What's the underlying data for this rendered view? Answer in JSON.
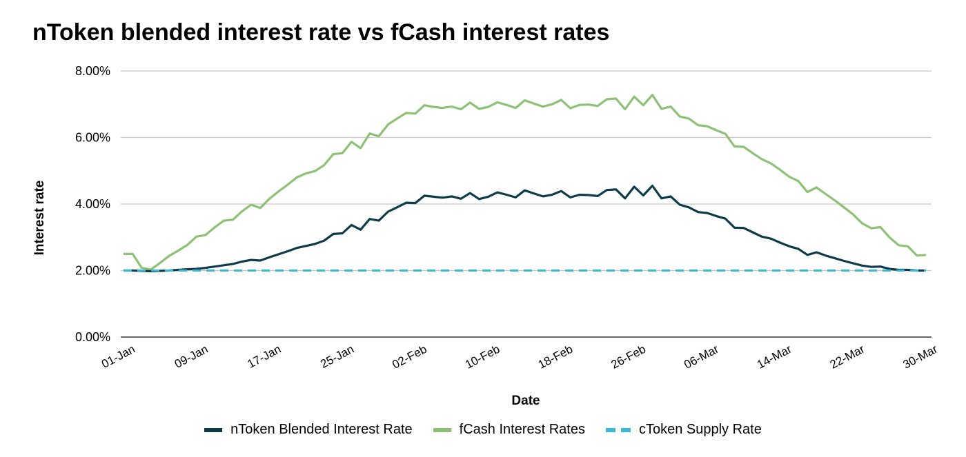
{
  "chart_data": {
    "type": "line",
    "title": "nToken blended interest rate vs fCash interest rates",
    "xlabel": "Date",
    "ylabel": "Interest rate",
    "ylim": [
      0,
      8
    ],
    "yticks": [
      "0.00%",
      "2.00%",
      "4.00%",
      "6.00%",
      "8.00%"
    ],
    "x_tick_labels": [
      "01-Jan",
      "09-Jan",
      "17-Jan",
      "25-Jan",
      "02-Feb",
      "10-Feb",
      "18-Feb",
      "26-Feb",
      "06-Mar",
      "14-Mar",
      "22-Mar",
      "30-Mar"
    ],
    "x": [
      "01-Jan",
      "02-Jan",
      "03-Jan",
      "04-Jan",
      "05-Jan",
      "06-Jan",
      "07-Jan",
      "08-Jan",
      "09-Jan",
      "10-Jan",
      "11-Jan",
      "12-Jan",
      "13-Jan",
      "14-Jan",
      "15-Jan",
      "16-Jan",
      "17-Jan",
      "18-Jan",
      "19-Jan",
      "20-Jan",
      "21-Jan",
      "22-Jan",
      "23-Jan",
      "24-Jan",
      "25-Jan",
      "26-Jan",
      "27-Jan",
      "28-Jan",
      "29-Jan",
      "30-Jan",
      "31-Jan",
      "01-Feb",
      "02-Feb",
      "03-Feb",
      "04-Feb",
      "05-Feb",
      "06-Feb",
      "07-Feb",
      "08-Feb",
      "09-Feb",
      "10-Feb",
      "11-Feb",
      "12-Feb",
      "13-Feb",
      "14-Feb",
      "15-Feb",
      "16-Feb",
      "17-Feb",
      "18-Feb",
      "19-Feb",
      "20-Feb",
      "21-Feb",
      "22-Feb",
      "23-Feb",
      "24-Feb",
      "25-Feb",
      "26-Feb",
      "27-Feb",
      "28-Feb",
      "01-Mar",
      "02-Mar",
      "03-Mar",
      "04-Mar",
      "05-Mar",
      "06-Mar",
      "07-Mar",
      "08-Mar",
      "09-Mar",
      "10-Mar",
      "11-Mar",
      "12-Mar",
      "13-Mar",
      "14-Mar",
      "15-Mar",
      "16-Mar",
      "17-Mar",
      "18-Mar",
      "19-Mar",
      "20-Mar",
      "21-Mar",
      "22-Mar",
      "23-Mar",
      "24-Mar",
      "25-Mar",
      "26-Mar",
      "27-Mar",
      "28-Mar",
      "29-Mar",
      "30-Mar"
    ],
    "grid": true,
    "legend_position": "bottom",
    "series": [
      {
        "name": "nToken Blended Interest Rate",
        "color": "#0d3b4a",
        "style": "solid",
        "values": [
          2.0,
          2.0,
          1.99,
          1.98,
          1.99,
          2.0,
          2.02,
          2.04,
          2.05,
          2.08,
          2.12,
          2.16,
          2.2,
          2.27,
          2.32,
          2.3,
          2.4,
          2.49,
          2.58,
          2.68,
          2.74,
          2.8,
          2.9,
          3.1,
          3.12,
          3.37,
          3.23,
          3.55,
          3.5,
          3.77,
          3.9,
          4.04,
          4.03,
          4.25,
          4.22,
          4.19,
          4.23,
          4.16,
          4.33,
          4.15,
          4.22,
          4.35,
          4.28,
          4.2,
          4.41,
          4.32,
          4.23,
          4.28,
          4.39,
          4.2,
          4.28,
          4.27,
          4.24,
          4.42,
          4.44,
          4.17,
          4.52,
          4.26,
          4.55,
          4.17,
          4.23,
          3.98,
          3.9,
          3.76,
          3.73,
          3.64,
          3.56,
          3.29,
          3.28,
          3.15,
          3.02,
          2.96,
          2.84,
          2.73,
          2.65,
          2.47,
          2.55,
          2.45,
          2.37,
          2.29,
          2.22,
          2.15,
          2.11,
          2.12,
          2.05,
          2.02,
          2.02,
          2.0,
          2.0
        ]
      },
      {
        "name": "fCash Interest Rates",
        "color": "#8cc176",
        "style": "solid",
        "values": [
          2.5,
          2.5,
          2.08,
          2.03,
          2.23,
          2.44,
          2.6,
          2.77,
          3.02,
          3.07,
          3.3,
          3.5,
          3.53,
          3.78,
          3.98,
          3.88,
          4.16,
          4.38,
          4.58,
          4.8,
          4.92,
          4.99,
          5.17,
          5.5,
          5.53,
          5.87,
          5.68,
          6.12,
          6.04,
          6.39,
          6.57,
          6.74,
          6.72,
          6.97,
          6.92,
          6.89,
          6.93,
          6.85,
          7.05,
          6.86,
          6.92,
          7.06,
          6.98,
          6.89,
          7.12,
          7.02,
          6.93,
          7.0,
          7.13,
          6.88,
          6.98,
          6.99,
          6.95,
          7.15,
          7.17,
          6.85,
          7.23,
          6.97,
          7.28,
          6.86,
          6.93,
          6.63,
          6.57,
          6.37,
          6.34,
          6.22,
          6.11,
          5.73,
          5.72,
          5.53,
          5.35,
          5.22,
          5.03,
          4.82,
          4.69,
          4.36,
          4.5,
          4.3,
          4.11,
          3.9,
          3.69,
          3.42,
          3.27,
          3.31,
          3.0,
          2.76,
          2.73,
          2.45,
          2.47
        ]
      },
      {
        "name": "cToken Supply Rate",
        "color": "#3ab9d6",
        "style": "dashed",
        "values": [
          2.0,
          2.0,
          2.0,
          2.0,
          2.0,
          2.0,
          2.0,
          2.0,
          2.0,
          2.0,
          2.0,
          2.0,
          2.0,
          2.0,
          2.0,
          2.0,
          2.0,
          2.0,
          2.0,
          2.0,
          2.0,
          2.0,
          2.0,
          2.0,
          2.0,
          2.0,
          2.0,
          2.0,
          2.0,
          2.0,
          2.0,
          2.0,
          2.0,
          2.0,
          2.0,
          2.0,
          2.0,
          2.0,
          2.0,
          2.0,
          2.0,
          2.0,
          2.0,
          2.0,
          2.0,
          2.0,
          2.0,
          2.0,
          2.0,
          2.0,
          2.0,
          2.0,
          2.0,
          2.0,
          2.0,
          2.0,
          2.0,
          2.0,
          2.0,
          2.0,
          2.0,
          2.0,
          2.0,
          2.0,
          2.0,
          2.0,
          2.0,
          2.0,
          2.0,
          2.0,
          2.0,
          2.0,
          2.0,
          2.0,
          2.0,
          2.0,
          2.0,
          2.0,
          2.0,
          2.0,
          2.0,
          2.0,
          2.0,
          2.0,
          2.0,
          2.0,
          2.0,
          2.0,
          2.0
        ]
      }
    ]
  }
}
